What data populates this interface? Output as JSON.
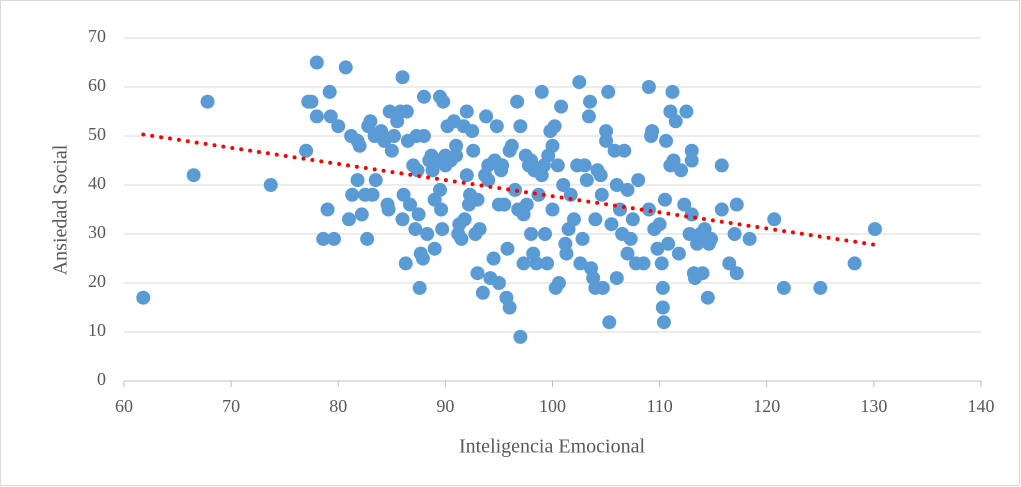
{
  "chart_data": {
    "type": "scatter",
    "x_label": "Inteligencia Emocional",
    "y_label": "Ansiedad Social",
    "color": "#5b9bd5",
    "x": [
      61.8,
      66.5,
      67.8,
      73.7,
      77,
      77.2,
      77.5,
      78,
      78,
      78.6,
      79,
      79.2,
      79.3,
      79.6,
      80,
      80.7,
      81,
      81.2,
      81.3,
      81.8,
      81.8,
      82,
      82.2,
      82.5,
      82.7,
      82.8,
      83,
      83.2,
      83.4,
      83.5,
      84,
      84.3,
      84.6,
      84.7,
      84.8,
      85,
      85.2,
      85.5,
      85.8,
      86,
      86,
      86.1,
      86.3,
      86.4,
      86.5,
      86.7,
      87,
      87.2,
      87.3,
      87.4,
      87.5,
      87.6,
      87.7,
      87.9,
      88,
      88,
      88.3,
      88.5,
      88.7,
      88.8,
      89,
      89,
      89.3,
      89.5,
      89.5,
      89.6,
      89.7,
      89.8,
      90,
      90,
      90.2,
      90.5,
      90.8,
      91,
      91,
      91.2,
      91.3,
      91.5,
      91.7,
      91.8,
      92,
      92,
      92.2,
      92.3,
      92.5,
      92.6,
      92.8,
      93,
      93,
      93.2,
      93.5,
      93.7,
      93.8,
      94,
      94,
      94.2,
      94.5,
      94.6,
      94.8,
      95,
      95,
      95.2,
      95.3,
      95.5,
      95.7,
      95.8,
      96,
      96,
      96.2,
      96.5,
      96.7,
      96.8,
      97,
      97,
      97.3,
      97.3,
      97.5,
      97.6,
      97.8,
      98,
      98,
      98.2,
      98.3,
      98.5,
      98.7,
      99,
      99,
      99.2,
      99.3,
      99.5,
      99.6,
      99.8,
      100,
      100,
      100.2,
      100.3,
      100.5,
      100.6,
      100.8,
      101,
      101.2,
      101.3,
      101.5,
      101.7,
      102,
      102.3,
      102.5,
      102.6,
      102.8,
      103,
      103.2,
      103.4,
      103.5,
      103.6,
      103.8,
      104,
      104,
      104.2,
      104.5,
      104.6,
      104.7,
      105,
      105,
      105.2,
      105.3,
      105.5,
      105.8,
      106,
      106,
      106.3,
      106.5,
      106.7,
      107,
      107,
      107.3,
      107.5,
      107.8,
      108,
      108.5,
      109,
      109,
      109.2,
      109.3,
      109.5,
      109.8,
      110,
      110.2,
      110.3,
      110.3,
      110.4,
      110.5,
      110.6,
      110.8,
      111,
      111,
      111.2,
      111.3,
      111.5,
      111.8,
      112,
      112.3,
      112.5,
      112.8,
      113,
      113,
      113,
      113.2,
      113.3,
      113.5,
      113.8,
      114,
      114.2,
      114.5,
      114.6,
      114.8,
      115.8,
      115.8,
      116.5,
      117,
      117.2,
      117.2,
      118.4,
      120.7,
      121.6,
      125,
      128.2,
      130.1
    ],
    "values": [
      17,
      42,
      57,
      40,
      47,
      57,
      57,
      65,
      54,
      29,
      35,
      59,
      54,
      29,
      52,
      64,
      33,
      50,
      38,
      49,
      41,
      48,
      34,
      38,
      29,
      52,
      53,
      38,
      50,
      41,
      51,
      49,
      36,
      35,
      55,
      47,
      50,
      53,
      55,
      33,
      62,
      38,
      24,
      55,
      49,
      36,
      44,
      31,
      50,
      43,
      34,
      19,
      26,
      25,
      58,
      50,
      30,
      45,
      46,
      43,
      37,
      27,
      45,
      58,
      39,
      35,
      31,
      57,
      44,
      46,
      52,
      45,
      53,
      48,
      46,
      30,
      32,
      29,
      52,
      33,
      55,
      42,
      36,
      38,
      51,
      47,
      30,
      37,
      22,
      31,
      18,
      42,
      54,
      44,
      41,
      21,
      25,
      45,
      52,
      20,
      36,
      43,
      44,
      36,
      17,
      27,
      15,
      47,
      48,
      39,
      57,
      35,
      52,
      9,
      34,
      24,
      46,
      36,
      44,
      30,
      45,
      26,
      43,
      24,
      38,
      59,
      42,
      44,
      30,
      24,
      46,
      51,
      35,
      48,
      52,
      19,
      44,
      20,
      56,
      40,
      28,
      26,
      31,
      38,
      33,
      44,
      61,
      24,
      29,
      44,
      41,
      54,
      57,
      23,
      21,
      19,
      33,
      43,
      42,
      38,
      19,
      51,
      49,
      59,
      12,
      32,
      47,
      21,
      40,
      35,
      30,
      47,
      39,
      26,
      29,
      33,
      24,
      41,
      24,
      60,
      35,
      50,
      51,
      31,
      27,
      32,
      24,
      19,
      15,
      12,
      37,
      49,
      28,
      55,
      44,
      59,
      45,
      53,
      26,
      43,
      36,
      55,
      30,
      47,
      45,
      34,
      22,
      21,
      28,
      30,
      22,
      31,
      17,
      28,
      29,
      35,
      44,
      24,
      30,
      36,
      22,
      29,
      33,
      19,
      19,
      24,
      31
    ],
    "trendline": {
      "x": [
        61.8,
        130.1
      ],
      "values": [
        50.3,
        27.8
      ],
      "color": "#ff0000"
    },
    "xlim": [
      60,
      140
    ],
    "xticks": [
      60,
      70,
      80,
      90,
      100,
      110,
      120,
      130,
      140
    ],
    "ylim": [
      0,
      70
    ],
    "yticks": [
      0,
      10,
      20,
      30,
      40,
      50,
      60,
      70
    ],
    "grid": true
  }
}
